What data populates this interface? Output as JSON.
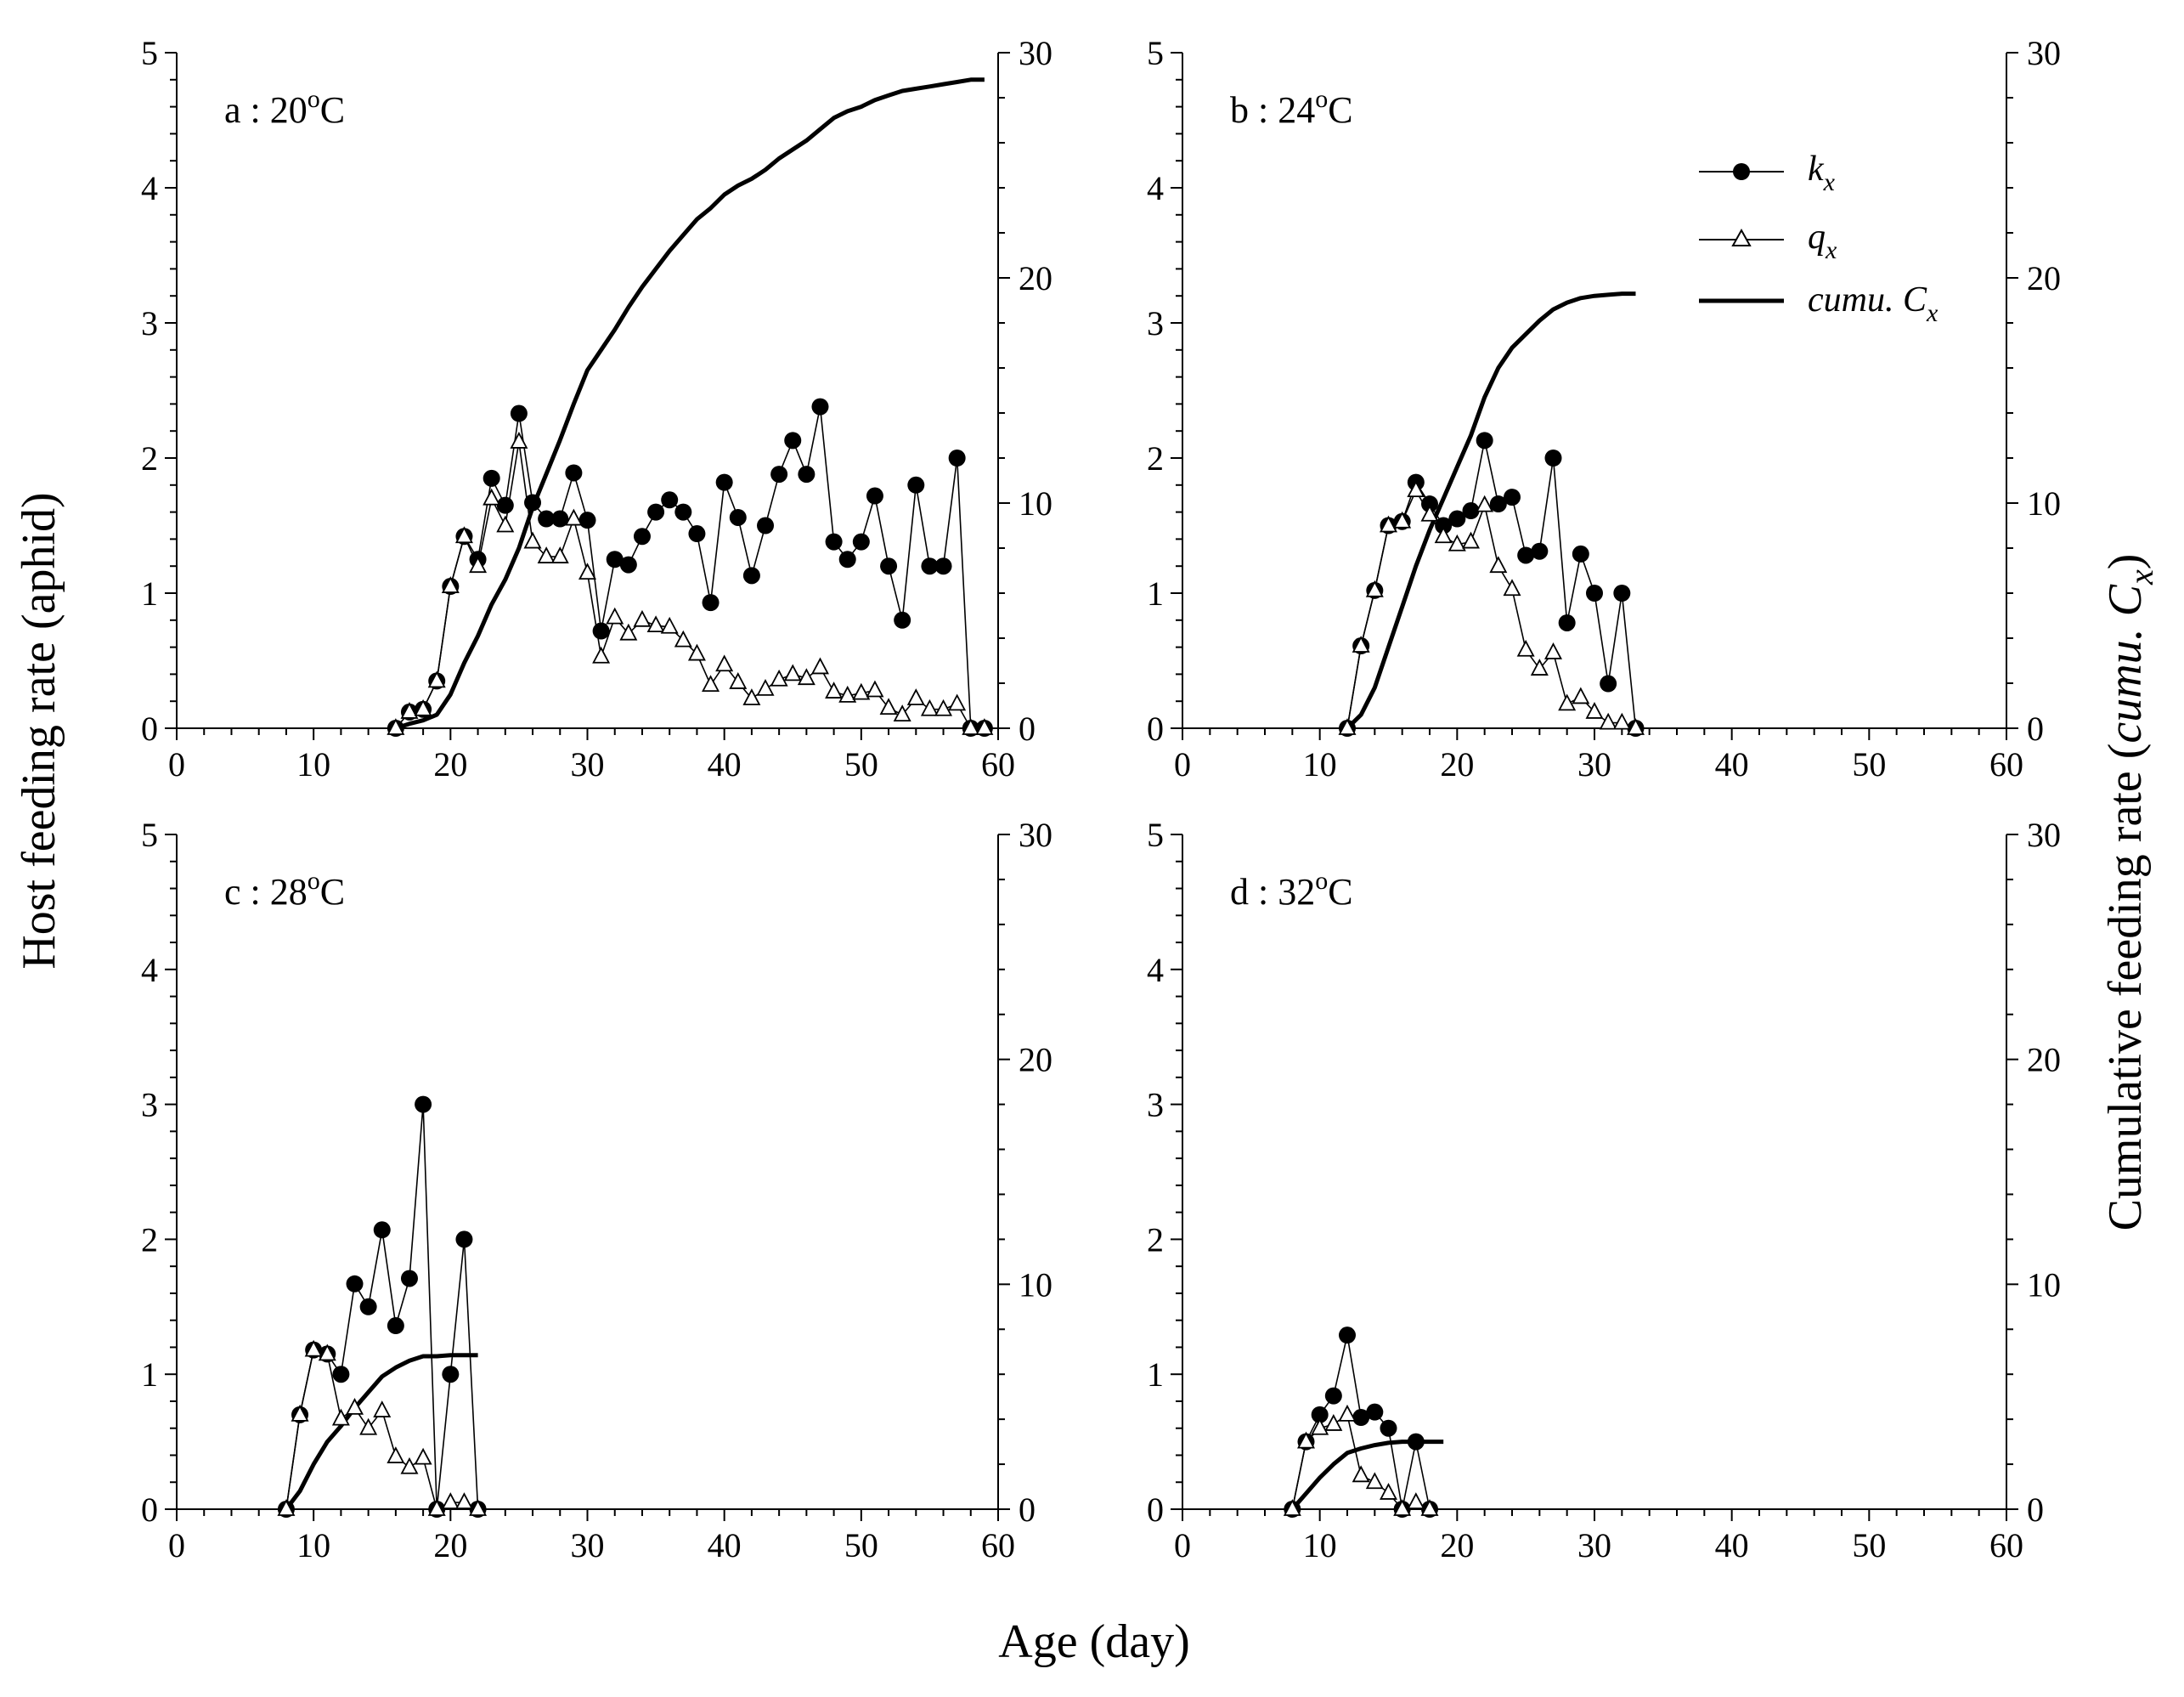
{
  "figure": {
    "ylabel_left": "Host feeding rate (aphid)",
    "ylabel_right_prefix": "Cumulative feeding rate (",
    "ylabel_right_italic": "cumu. C",
    "ylabel_right_sub": "x",
    "ylabel_right_suffix": ")",
    "xlabel": "Age (day)"
  },
  "legend": {
    "items": [
      {
        "key": "k",
        "label": "k",
        "sub": "x",
        "marker": "filled-circle"
      },
      {
        "key": "q",
        "label": "q",
        "sub": "x",
        "marker": "open-triangle"
      },
      {
        "key": "c",
        "label": "cumu. C",
        "sub": "x",
        "marker": "thick-line"
      }
    ]
  },
  "chart_data": [
    {
      "type": "line",
      "panel": "a",
      "label_prefix": "a : 20",
      "label_sup": "o",
      "label_suffix": "C",
      "xlim": [
        0,
        60
      ],
      "ylim_left": [
        0,
        5
      ],
      "ylim_right": [
        0,
        30
      ],
      "x_ticks": [
        "0",
        "10",
        "20",
        "30",
        "40",
        "50",
        "60"
      ],
      "y_ticks_left": [
        "0",
        "1",
        "2",
        "3",
        "4",
        "5"
      ],
      "y_ticks_right": [
        "0",
        "10",
        "20",
        "30"
      ],
      "series": [
        {
          "name": "kx",
          "axis": "left",
          "x": [
            16,
            17,
            18,
            19,
            20,
            21,
            22,
            23,
            24,
            25,
            26,
            27,
            28,
            29,
            30,
            31,
            32,
            33,
            34,
            35,
            36,
            37,
            38,
            39,
            40,
            41,
            42,
            43,
            44,
            45,
            46,
            47,
            48,
            49,
            50,
            51,
            52,
            53,
            54,
            55,
            56,
            57,
            58,
            59
          ],
          "y": [
            0,
            0.12,
            0.14,
            0.35,
            1.05,
            1.42,
            1.25,
            1.85,
            1.65,
            2.33,
            1.67,
            1.55,
            1.55,
            1.89,
            1.54,
            0.72,
            1.25,
            1.21,
            1.42,
            1.6,
            1.69,
            1.6,
            1.44,
            0.93,
            1.82,
            1.56,
            1.13,
            1.5,
            1.88,
            2.13,
            1.88,
            2.38,
            1.38,
            1.25,
            1.38,
            1.72,
            1.2,
            0.8,
            1.8,
            1.2,
            1.2,
            2,
            0,
            0
          ]
        },
        {
          "name": "qx",
          "axis": "left",
          "x": [
            16,
            17,
            18,
            19,
            20,
            21,
            22,
            23,
            24,
            25,
            26,
            27,
            28,
            29,
            30,
            31,
            32,
            33,
            34,
            35,
            36,
            37,
            38,
            39,
            40,
            41,
            42,
            43,
            44,
            45,
            46,
            47,
            48,
            49,
            50,
            51,
            52,
            53,
            54,
            55,
            56,
            57,
            58,
            59
          ],
          "y": [
            0,
            0.12,
            0.14,
            0.35,
            1.05,
            1.42,
            1.2,
            1.7,
            1.5,
            2.12,
            1.38,
            1.27,
            1.27,
            1.55,
            1.15,
            0.53,
            0.82,
            0.7,
            0.8,
            0.76,
            0.75,
            0.65,
            0.55,
            0.32,
            0.47,
            0.34,
            0.22,
            0.29,
            0.36,
            0.4,
            0.37,
            0.45,
            0.27,
            0.24,
            0.26,
            0.28,
            0.15,
            0.1,
            0.22,
            0.14,
            0.14,
            0.18,
            0,
            0
          ]
        },
        {
          "name": "cumu. Cx",
          "axis": "right",
          "x": [
            16,
            17,
            18,
            19,
            20,
            21,
            22,
            23,
            24,
            25,
            26,
            27,
            28,
            29,
            30,
            31,
            32,
            33,
            34,
            35,
            36,
            37,
            38,
            39,
            40,
            41,
            42,
            43,
            44,
            45,
            46,
            47,
            48,
            49,
            50,
            51,
            52,
            53,
            54,
            55,
            56,
            57,
            58,
            59
          ],
          "y": [
            0,
            0.2,
            0.35,
            0.6,
            1.5,
            2.9,
            4.1,
            5.5,
            6.6,
            8.0,
            9.8,
            11.3,
            12.8,
            14.4,
            15.9,
            16.8,
            17.7,
            18.7,
            19.6,
            20.4,
            21.2,
            21.9,
            22.6,
            23.1,
            23.7,
            24.1,
            24.4,
            24.8,
            25.3,
            25.7,
            26.1,
            26.6,
            27.1,
            27.4,
            27.6,
            27.9,
            28.1,
            28.3,
            28.4,
            28.5,
            28.6,
            28.7,
            28.8,
            28.8
          ]
        }
      ]
    },
    {
      "type": "line",
      "panel": "b",
      "label_prefix": "b : 24",
      "label_sup": "o",
      "label_suffix": "C",
      "xlim": [
        0,
        60
      ],
      "ylim_left": [
        0,
        5
      ],
      "ylim_right": [
        0,
        30
      ],
      "x_ticks": [
        "0",
        "10",
        "20",
        "30",
        "40",
        "50",
        "60"
      ],
      "y_ticks_left": [
        "0",
        "1",
        "2",
        "3",
        "4",
        "5"
      ],
      "y_ticks_right": [
        "0",
        "10",
        "20",
        "30"
      ],
      "series": [
        {
          "name": "kx",
          "axis": "left",
          "x": [
            12,
            13,
            14,
            15,
            16,
            17,
            18,
            19,
            20,
            21,
            22,
            23,
            24,
            25,
            26,
            27,
            28,
            29,
            30,
            31,
            32,
            33
          ],
          "y": [
            0,
            0.61,
            1.02,
            1.5,
            1.53,
            1.82,
            1.66,
            1.5,
            1.55,
            1.61,
            2.13,
            1.66,
            1.71,
            1.28,
            1.31,
            2,
            0.78,
            1.29,
            1,
            0.33,
            1,
            0
          ]
        },
        {
          "name": "qx",
          "axis": "left",
          "x": [
            12,
            13,
            14,
            15,
            16,
            17,
            18,
            19,
            20,
            21,
            22,
            23,
            24,
            25,
            26,
            27,
            28,
            29,
            30,
            31,
            32,
            33
          ],
          "y": [
            0,
            0.61,
            1.02,
            1.5,
            1.53,
            1.76,
            1.58,
            1.42,
            1.36,
            1.38,
            1.65,
            1.2,
            1.03,
            0.58,
            0.44,
            0.56,
            0.18,
            0.23,
            0.12,
            0.04,
            0.04,
            0
          ]
        },
        {
          "name": "cumu. Cx",
          "axis": "right",
          "x": [
            12,
            13,
            14,
            15,
            16,
            17,
            18,
            19,
            20,
            21,
            22,
            23,
            24,
            25,
            26,
            27,
            28,
            29,
            30,
            31,
            32,
            33
          ],
          "y": [
            0,
            0.6,
            1.8,
            3.6,
            5.4,
            7.2,
            8.8,
            10.2,
            11.6,
            13,
            14.7,
            16,
            16.9,
            17.5,
            18.1,
            18.6,
            18.9,
            19.1,
            19.2,
            19.25,
            19.3,
            19.3
          ]
        }
      ]
    },
    {
      "type": "line",
      "panel": "c",
      "label_prefix": "c : 28",
      "label_sup": "o",
      "label_suffix": "C",
      "xlim": [
        0,
        60
      ],
      "ylim_left": [
        0,
        5
      ],
      "ylim_right": [
        0,
        30
      ],
      "x_ticks": [
        "0",
        "10",
        "20",
        "30",
        "40",
        "50",
        "60"
      ],
      "y_ticks_left": [
        "0",
        "1",
        "2",
        "3",
        "4",
        "5"
      ],
      "y_ticks_right": [
        "0",
        "10",
        "20",
        "30"
      ],
      "series": [
        {
          "name": "kx",
          "axis": "left",
          "x": [
            8,
            9,
            10,
            11,
            12,
            13,
            14,
            15,
            16,
            17,
            18,
            19,
            20,
            21,
            22
          ],
          "y": [
            0,
            0.7,
            1.18,
            1.15,
            1,
            1.67,
            1.5,
            2.07,
            1.36,
            1.71,
            3,
            0,
            1,
            2,
            0
          ]
        },
        {
          "name": "qx",
          "axis": "left",
          "x": [
            8,
            9,
            10,
            11,
            12,
            13,
            14,
            15,
            16,
            17,
            18,
            19,
            20,
            21,
            22
          ],
          "y": [
            0,
            0.7,
            1.18,
            1.15,
            0.67,
            0.75,
            0.6,
            0.73,
            0.39,
            0.31,
            0.38,
            0,
            0.05,
            0.05,
            0
          ]
        },
        {
          "name": "cumu. Cx",
          "axis": "right",
          "x": [
            8,
            9,
            10,
            11,
            12,
            13,
            14,
            15,
            16,
            17,
            18,
            19,
            20,
            21,
            22
          ],
          "y": [
            0,
            0.8,
            2,
            3,
            3.7,
            4.5,
            5.2,
            5.9,
            6.3,
            6.6,
            6.8,
            6.8,
            6.85,
            6.85,
            6.85
          ]
        }
      ]
    },
    {
      "type": "line",
      "panel": "d",
      "label_prefix": "d : 32",
      "label_sup": "o",
      "label_suffix": "C",
      "xlim": [
        0,
        60
      ],
      "ylim_left": [
        0,
        5
      ],
      "ylim_right": [
        0,
        30
      ],
      "x_ticks": [
        "0",
        "10",
        "20",
        "30",
        "40",
        "50",
        "60"
      ],
      "y_ticks_left": [
        "0",
        "1",
        "2",
        "3",
        "4",
        "5"
      ],
      "y_ticks_right": [
        "0",
        "10",
        "20",
        "30"
      ],
      "series": [
        {
          "name": "kx",
          "axis": "left",
          "x": [
            8,
            9,
            10,
            11,
            12,
            13,
            14,
            15,
            16,
            17,
            18
          ],
          "y": [
            0,
            0.5,
            0.7,
            0.84,
            1.29,
            0.68,
            0.72,
            0.6,
            0,
            0.5,
            0
          ]
        },
        {
          "name": "qx",
          "axis": "left",
          "x": [
            8,
            9,
            10,
            11,
            12,
            13,
            14,
            15,
            16,
            17,
            18
          ],
          "y": [
            0,
            0.5,
            0.6,
            0.63,
            0.7,
            0.25,
            0.2,
            0.12,
            0,
            0.05,
            0
          ]
        },
        {
          "name": "cumu. Cx",
          "axis": "right",
          "x": [
            8,
            9,
            10,
            11,
            12,
            13,
            14,
            15,
            16,
            17,
            18,
            19
          ],
          "y": [
            0,
            0.7,
            1.4,
            2,
            2.5,
            2.7,
            2.85,
            2.95,
            3,
            3,
            3,
            3
          ]
        }
      ]
    }
  ]
}
